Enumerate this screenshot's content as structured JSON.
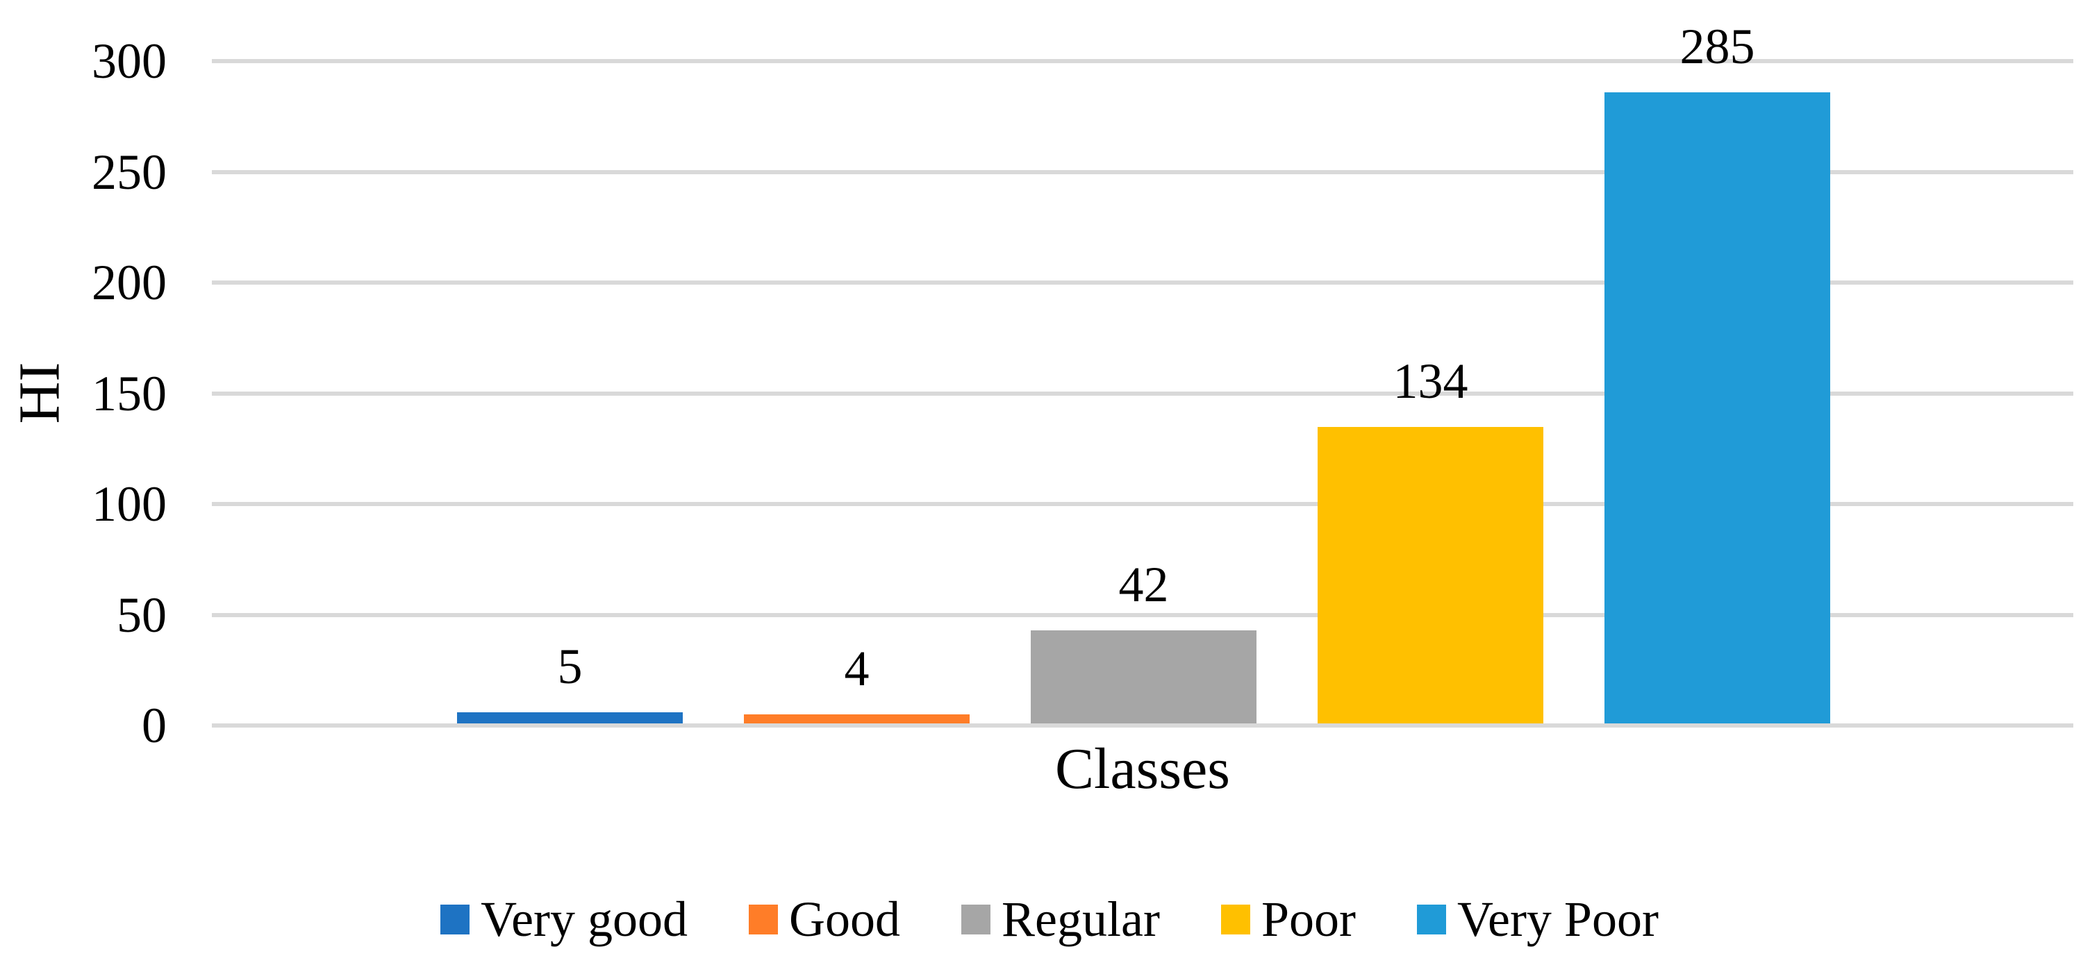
{
  "chart_data": {
    "type": "bar",
    "title": "",
    "xlabel": "Classes",
    "ylabel": "HI",
    "categories": [
      "Very good",
      "Good",
      "Regular",
      "Poor",
      "Very Poor"
    ],
    "values": [
      5,
      4,
      42,
      134,
      285
    ],
    "data_labels": [
      "5",
      "4",
      "42",
      "134",
      "285"
    ],
    "bar_colors": [
      "#1E73C3",
      "#FF7D28",
      "#A6A6A6",
      "#FFC000",
      "#209BD7"
    ],
    "ylim": [
      0,
      300
    ],
    "yticks": [
      0,
      50,
      100,
      150,
      200,
      250,
      300
    ],
    "ytick_labels": [
      "0",
      "50",
      "100",
      "150",
      "200",
      "250",
      "300"
    ],
    "grid": true,
    "legend_position": "bottom",
    "legend": [
      {
        "label": "Very good",
        "color": "#1E73C3"
      },
      {
        "label": "Good",
        "color": "#FF7D28"
      },
      {
        "label": "Regular",
        "color": "#A6A6A6"
      },
      {
        "label": "Poor",
        "color": "#FFC000"
      },
      {
        "label": "Very Poor",
        "color": "#209BD7"
      }
    ]
  },
  "colors": {
    "background": "#FFFFFF",
    "gridline": "#D9D9D9",
    "axis_line": "#D9D9D9",
    "text": "#000000"
  }
}
